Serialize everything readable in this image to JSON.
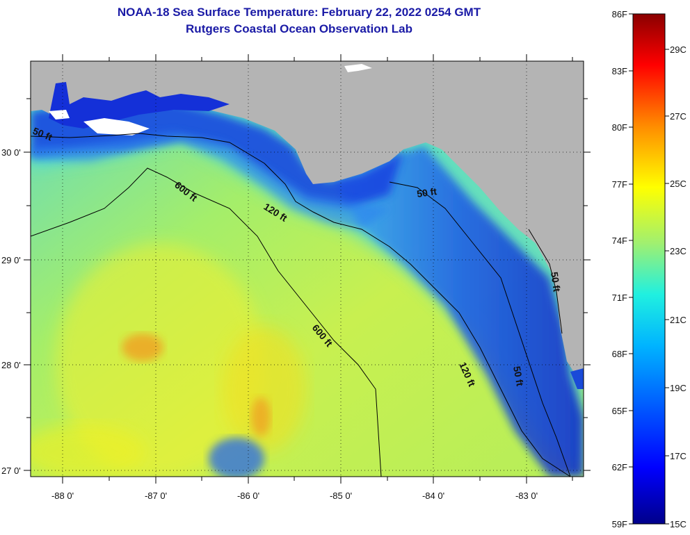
{
  "title": {
    "line1": "NOAA-18 Sea Surface Temperature:  February 22, 2022 0254 GMT",
    "line2": "Rutgers Coastal Ocean Observation Lab"
  },
  "map": {
    "lon_ticks": [
      {
        "value": -88,
        "label": "-88 0'"
      },
      {
        "value": -87,
        "label": "-87 0'"
      },
      {
        "value": -86,
        "label": "-86 0'"
      },
      {
        "value": -85,
        "label": "-85 0'"
      },
      {
        "value": -84,
        "label": "-84 0'"
      },
      {
        "value": -83,
        "label": "-83 0'"
      }
    ],
    "lat_ticks": [
      {
        "value": 30,
        "label": "30 0'"
      },
      {
        "value": 29,
        "label": "29 0'"
      },
      {
        "value": 28,
        "label": "28 0'"
      },
      {
        "value": 27,
        "label": "27 0'"
      }
    ],
    "lon_range": [
      -88.33,
      -82.33
    ],
    "lat_range": [
      26.95,
      30.85
    ],
    "land_color": "#b4b4b4",
    "contour_labels": [
      "50 ft",
      "600 ft",
      "120 ft",
      "50 ft",
      "600 ft",
      "120 ft",
      "50 ft",
      "50 ft"
    ]
  },
  "colorbar": {
    "fahrenheit": [
      "86F",
      "83F",
      "80F",
      "77F",
      "74F",
      "71F",
      "68F",
      "65F",
      "62F",
      "59F"
    ],
    "celsius": [
      "29C",
      "27C",
      "25C",
      "23C",
      "21C",
      "19C",
      "17C",
      "15C"
    ],
    "range_f": [
      59,
      86
    ]
  }
}
